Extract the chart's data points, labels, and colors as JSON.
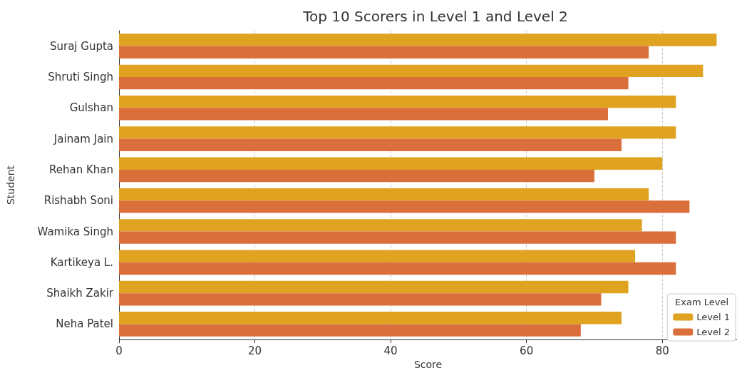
{
  "chart_data": {
    "type": "bar",
    "orientation": "horizontal",
    "title": "Top 10 Scorers in Level 1 and Level 2",
    "xlabel": "Score",
    "ylabel": "Student",
    "legend_title": "Exam Level",
    "categories": [
      "Suraj Gupta",
      "Shruti Singh",
      "Gulshan",
      "Jainam Jain",
      "Rehan Khan",
      "Rishabh Soni",
      "Wamika Singh",
      "Kartikeya L.",
      "Shaikh Zakir",
      "Neha Patel"
    ],
    "series": [
      {
        "name": "Level 1",
        "color": "#dfa221",
        "values": [
          88,
          86,
          82,
          82,
          80,
          78,
          77,
          76,
          75,
          74
        ]
      },
      {
        "name": "Level 2",
        "color": "#db6f3b",
        "values": [
          78,
          75,
          72,
          74,
          70,
          84,
          82,
          82,
          71,
          68
        ]
      }
    ],
    "xlim": [
      0,
      91
    ],
    "xticks": [
      0,
      20,
      40,
      60,
      80
    ],
    "grid": "x",
    "legend": "bottom right"
  }
}
